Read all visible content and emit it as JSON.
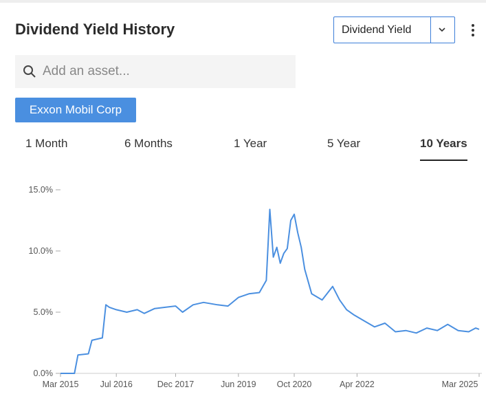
{
  "header": {
    "title": "Dividend Yield History"
  },
  "dropdown": {
    "label": "Dividend Yield"
  },
  "search": {
    "placeholder": "Add an asset..."
  },
  "asset_chip": {
    "label": "Exxon Mobil Corp"
  },
  "tabs": [
    {
      "label": "1 Month"
    },
    {
      "label": "6 Months"
    },
    {
      "label": "1 Year"
    },
    {
      "label": "5 Year"
    },
    {
      "label": "10 Years",
      "active": true
    }
  ],
  "chart_data": {
    "type": "line",
    "color": "#4a8fe0",
    "x": [
      "2015-03",
      "2015-07",
      "2015-08",
      "2015-11",
      "2015-12",
      "2016-03",
      "2016-04",
      "2016-05",
      "2016-07",
      "2016-10",
      "2017-01",
      "2017-03",
      "2017-06",
      "2017-09",
      "2017-12",
      "2018-02",
      "2018-05",
      "2018-08",
      "2018-12",
      "2019-03",
      "2019-06",
      "2019-09",
      "2019-12",
      "2020-02",
      "2020-03",
      "2020-04",
      "2020-05",
      "2020-06",
      "2020-07",
      "2020-08",
      "2020-09",
      "2020-10",
      "2020-11",
      "2020-12",
      "2021-01",
      "2021-03",
      "2021-06",
      "2021-09",
      "2021-11",
      "2022-01",
      "2022-03",
      "2022-06",
      "2022-09",
      "2022-12",
      "2023-03",
      "2023-06",
      "2023-09",
      "2023-12",
      "2024-03",
      "2024-06",
      "2024-09",
      "2024-12",
      "2025-02",
      "2025-03"
    ],
    "values": [
      0,
      0,
      1.5,
      1.6,
      2.7,
      2.9,
      5.6,
      5.4,
      5.2,
      5.0,
      5.2,
      4.9,
      5.3,
      5.4,
      5.5,
      5.0,
      5.6,
      5.8,
      5.6,
      5.5,
      6.2,
      6.5,
      6.6,
      7.6,
      13.4,
      9.5,
      10.3,
      9.0,
      9.8,
      10.2,
      12.5,
      13.0,
      11.5,
      10.3,
      8.5,
      6.5,
      6.0,
      7.1,
      6.0,
      5.2,
      4.8,
      4.3,
      3.8,
      4.1,
      3.4,
      3.5,
      3.3,
      3.7,
      3.5,
      4.0,
      3.5,
      3.4,
      3.7,
      3.6
    ],
    "xlim": [
      "2015-03",
      "2025-03"
    ],
    "xticks": [
      {
        "value": "2015-03",
        "label": "Mar 2015"
      },
      {
        "value": "2016-07",
        "label": "Jul 2016"
      },
      {
        "value": "2017-12",
        "label": "Dec 2017"
      },
      {
        "value": "2019-06",
        "label": "Jun 2019"
      },
      {
        "value": "2020-10",
        "label": "Oct 2020"
      },
      {
        "value": "2022-04",
        "label": "Apr 2022"
      },
      {
        "value": "2025-03",
        "label": "Mar 2025"
      }
    ],
    "ylim": [
      0,
      15
    ],
    "yticks": [
      {
        "value": 0,
        "label": "0.0%"
      },
      {
        "value": 5,
        "label": "5.0%"
      },
      {
        "value": 10,
        "label": "10.0%"
      },
      {
        "value": 15,
        "label": "15.0%"
      }
    ]
  }
}
